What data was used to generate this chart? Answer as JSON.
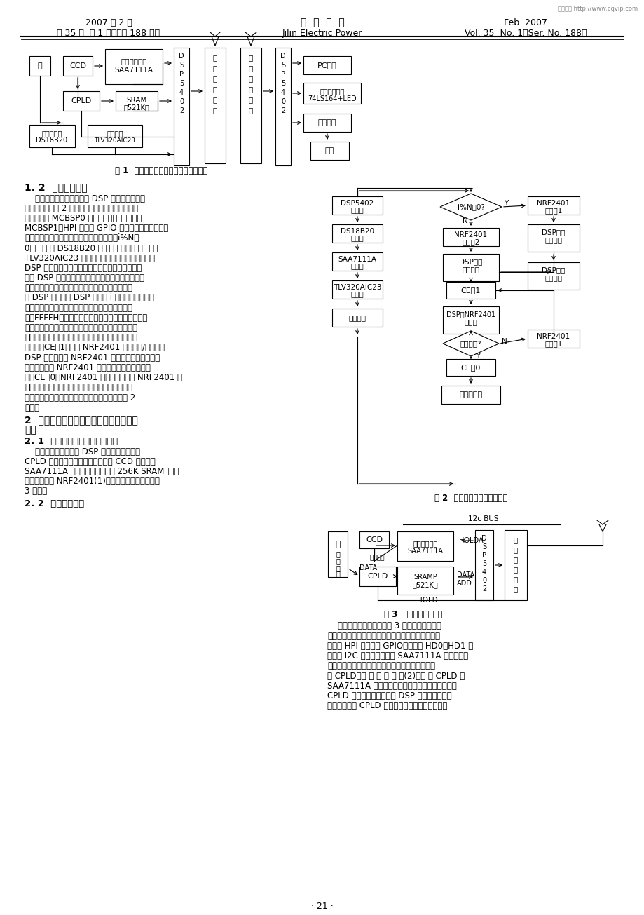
{
  "page_bg": "#ffffff",
  "watermark": "维普资讯 http://www.cqvip.com",
  "header_left_line1": "2007 年 2 月",
  "header_left_line2": "第 35 卷  第 1 期（总第 188 期）",
  "header_center_line1": "吉  林  电  力",
  "header_center_line2": "Jilin Electric Power",
  "header_right_line1": "Feb. 2007",
  "header_right_line2": "Vol. 35  No. 1（Ser. No. 188）",
  "fig1_caption": "图 1  变电所数字无线集成监控系统框图",
  "fig2_caption": "图 2  系统发送部分工作流程图",
  "fig3_caption": "图 3  视频采集硬件框图",
  "section_12": "1. 2  系统工作流程",
  "section_2_line1": "2  视频采集部分硬件电路组成及软件工作",
  "section_2_line2": "流程",
  "section_21": "2. 1  视频采集部分硬件电路组成",
  "section_22": "2. 2  软件工作流程",
  "body1": [
    "    前端数据采集发送部分由 DSP 作为控制核心，",
    "其工作流程如图 2 所示。上电后先进行各部分初始",
    "化，分别把 MCBSP0 配置成多通道缓冲串口，",
    "MCBSP1、HPI 配置成 GPIO 模式。初始化完毕，开",
    "始判断计数的当前值，当达到预定值倍数（i%N＝",
    "0）时 进 入 DS18B20 处 理 部 分，否 则 进 入",
    "TLV320AIC23 处理部分。而视频采集部分是通过",
    "DSP 中断完成的，在各部分上电初始化后，只要门",
    "打开 DSP 即进人对视频的操作。并且为了在接收端",
    "区分不同的数据以便分别显示或重播，除了在接收",
    "端 DSP 与发送端 DSP 同步对 i 检测以区分温度和",
    "音频数据外，还在每次发送视频数据前，先发标志",
    "码：FFFFH，当接收端收到这样的值时，就说明视频",
    "数据已发送，进人视频接收部分，从而接收端可以很",
    "好的区分接收的数据，做出相应的处理。当数据采集",
    "完毕后，CE＝1，进入 NRF2401 的数据收/发模式，",
    "DSP 依据前步对 NRF2401 初始化时规定的通信协",
    "议开始按位向 NRF2401 发送数据。当数据位发满",
    "后，CE＝0，NRF2401 发送数据。而后 NRF2401 进",
    "入空闲状态，发送端主程序返回进入查询计数值准",
    "备下一轮的数据发送。发送部分工作流程图如图 2",
    "所示。"
  ],
  "body2": [
    "    视频采集部分电路以 DSP 为核心控制芯片，",
    "CPLD 为采样控制芯片，其中还包括 CCD 摄像头、",
    "SAA7111A 视频解码电路，外扩 256K SRAM，数据",
    "无线发射模块 NRF2401(1)，视频采集硬件框图如图",
    "3 所示。"
  ],
  "body3_right": [
    "    视频采样端硬件框图如图 3 所示，按照硬件图",
    "设计软件工作流程为：上电以后先进行初始化，而后",
    "通过把 HPI 初始化成 GPIO，利用其 HD0、HD1 软",
    "件模拟 I2C 总线的时序，对 SAA7111A 初始化设置",
    "其工作模式。当变电门打开时，产生一个跳变电平",
    "给 CPLD，发 出 采 样 信 号(2)。由 于 CPLD 和",
    "SAA7111A 共用帧缓冲存储器的数据总线，所以在",
    "CPLD 采样过程中必须保持 DSP 的数据总线在高",
    "阻状态。为此 CPLD 在接到启动采样信号后，发送"
  ],
  "page_number": "· 21 ·"
}
